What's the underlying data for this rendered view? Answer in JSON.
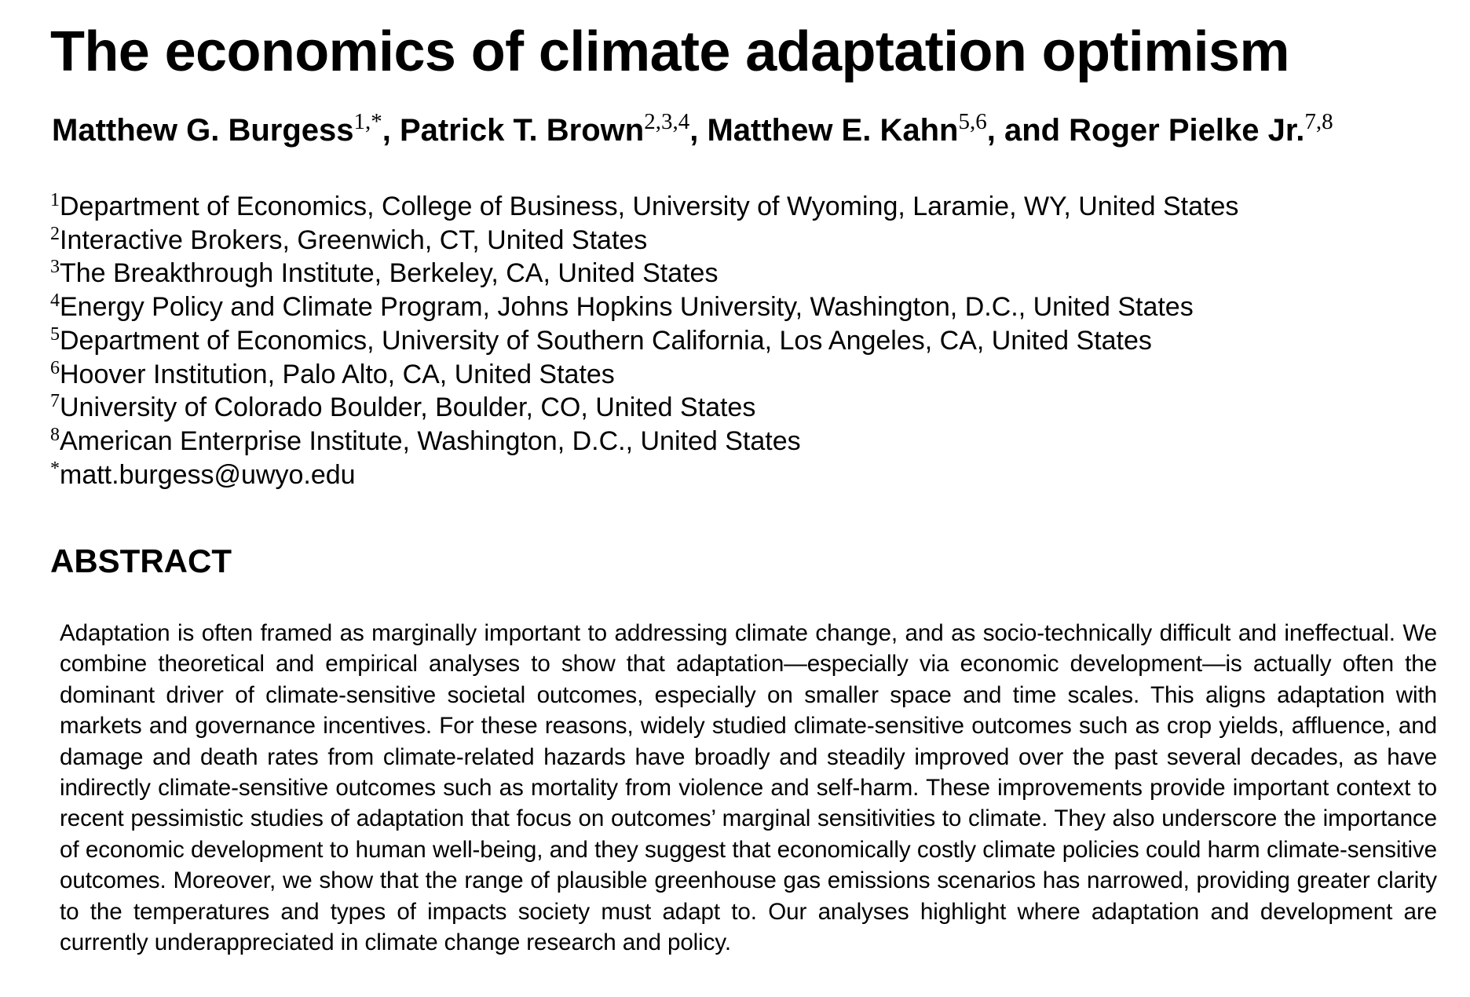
{
  "title": "The economics of climate adaptation optimism",
  "authors": [
    {
      "name": "Matthew G. Burgess",
      "sup": "1,*",
      "sep": ", "
    },
    {
      "name": "Patrick T. Brown",
      "sup": "2,3,4",
      "sep": ", "
    },
    {
      "name": "Matthew E. Kahn",
      "sup": "5,6",
      "sep": ", and "
    },
    {
      "name": "Roger Pielke Jr.",
      "sup": "7,8",
      "sep": ""
    }
  ],
  "affiliations": [
    {
      "sup": "1",
      "text": "Department of Economics, College of Business, University of Wyoming, Laramie, WY, United States"
    },
    {
      "sup": "2",
      "text": "Interactive Brokers, Greenwich, CT, United States"
    },
    {
      "sup": "3",
      "text": "The Breakthrough Institute, Berkeley, CA, United States"
    },
    {
      "sup": "4",
      "text": "Energy Policy and Climate Program, Johns Hopkins University, Washington, D.C., United States"
    },
    {
      "sup": "5",
      "text": "Department of Economics, University of Southern California, Los Angeles, CA, United States"
    },
    {
      "sup": "6",
      "text": "Hoover Institution, Palo Alto, CA, United States"
    },
    {
      "sup": "7",
      "text": "University of Colorado Boulder, Boulder, CO, United States"
    },
    {
      "sup": "8",
      "text": "American Enterprise Institute, Washington, D.C., United States"
    },
    {
      "sup": "*",
      "text": "matt.burgess@uwyo.edu"
    }
  ],
  "abstract": {
    "heading": "ABSTRACT",
    "text": "Adaptation is often framed as marginally important to addressing climate change, and as socio-technically difficult and ineffectual. We combine theoretical and empirical analyses to show that adaptation—especially via economic development—is actually often the dominant driver of climate-sensitive societal outcomes, especially on smaller space and time scales. This aligns adaptation with markets and governance incentives. For these reasons, widely studied climate-sensitive outcomes such as crop yields, affluence, and damage and death rates from climate-related hazards have broadly and steadily improved over the past several decades, as have indirectly climate-sensitive outcomes such as mortality from violence and self-harm. These improvements provide important context to recent pessimistic studies of adaptation that focus on outcomes’ marginal sensitivities to climate. They also underscore the importance of economic development to human well-being, and they suggest that economically costly climate policies could harm climate-sensitive outcomes. Moreover, we show that the range of plausible greenhouse gas emissions scenarios has narrowed, providing greater clarity to the temperatures and types of impacts society must adapt to. Our analyses highlight where adaptation and development are currently underappreciated in climate change research and policy."
  }
}
